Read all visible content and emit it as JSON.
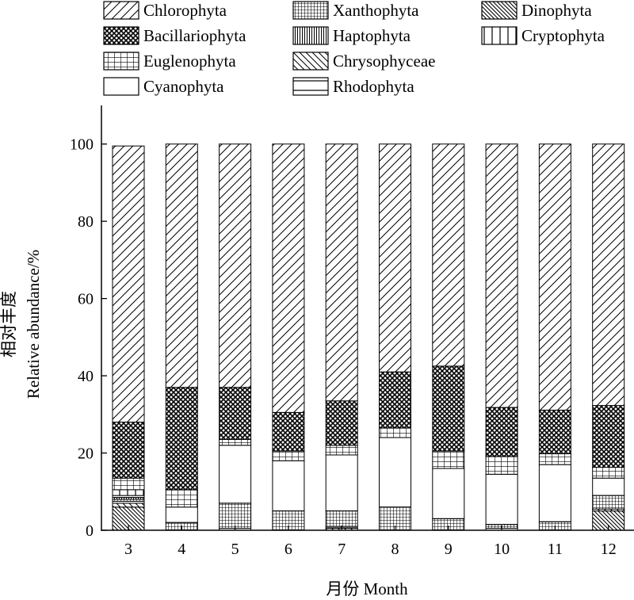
{
  "chart_data": {
    "type": "bar",
    "stacked": true,
    "xlabel": "月份 Month",
    "ylabel_cn": "相对丰度",
    "ylabel": "Relative abundance/%",
    "ylim": [
      0,
      110
    ],
    "yticks": [
      0,
      20,
      40,
      60,
      80,
      100
    ],
    "categories": [
      "3",
      "4",
      "5",
      "6",
      "7",
      "8",
      "9",
      "10",
      "11",
      "12"
    ],
    "legend": {
      "placement": "top",
      "entries": [
        {
          "name": "Chlorophyta",
          "pattern": "diag-fwd"
        },
        {
          "name": "Bacillariophyta",
          "pattern": "crosshatch-dense"
        },
        {
          "name": "Euglenophyta",
          "pattern": "grid"
        },
        {
          "name": "Cyanophyta",
          "pattern": "blank"
        },
        {
          "name": "Xanthophyta",
          "pattern": "grid-dense"
        },
        {
          "name": "Haptophyta",
          "pattern": "vertical-dense"
        },
        {
          "name": "Chrysophyceae",
          "pattern": "diag-back"
        },
        {
          "name": "Rhodophyta",
          "pattern": "horizontal"
        },
        {
          "name": "Dinophyta",
          "pattern": "diag-back-dense"
        },
        {
          "name": "Cryptophyta",
          "pattern": "vertical"
        }
      ]
    },
    "stack_order": [
      "Dinophyta",
      "Chrysophyceae",
      "Rhodophyta",
      "Xanthophyta",
      "Haptophyta",
      "Cyanophyta",
      "Cryptophyta",
      "Euglenophyta",
      "Bacillariophyta",
      "Chlorophyta"
    ],
    "series": [
      {
        "name": "Dinophyta",
        "values": [
          6.0,
          0,
          0,
          0,
          0,
          0,
          0,
          0,
          0,
          5.0
        ]
      },
      {
        "name": "Chrysophyceae",
        "values": [
          1.0,
          0,
          0,
          0,
          0.5,
          0,
          0,
          0,
          0,
          0.5
        ]
      },
      {
        "name": "Rhodophyta",
        "values": [
          0.5,
          0,
          0.5,
          0,
          0.5,
          0,
          0,
          0.5,
          0,
          0
        ]
      },
      {
        "name": "Xanthophyta",
        "values": [
          0.5,
          2.0,
          6.5,
          5.0,
          4.0,
          6.0,
          3.0,
          1.0,
          2.2,
          3.5
        ]
      },
      {
        "name": "Haptophyta",
        "values": [
          0.5,
          0,
          0,
          0,
          0,
          0,
          0,
          0,
          0,
          0
        ]
      },
      {
        "name": "Cyanophyta",
        "values": [
          0.5,
          4.0,
          15.0,
          13.0,
          14.5,
          18.0,
          13.0,
          13.0,
          14.8,
          4.5
        ]
      },
      {
        "name": "Cryptophyta",
        "values": [
          1.5,
          0,
          0,
          0,
          0,
          0,
          0,
          0,
          0,
          0
        ]
      },
      {
        "name": "Euglenophyta",
        "values": [
          3.0,
          4.5,
          1.5,
          2.5,
          2.5,
          2.5,
          4.5,
          4.6,
          2.8,
          2.8
        ]
      },
      {
        "name": "Bacillariophyta",
        "values": [
          14.5,
          26.5,
          13.5,
          10.0,
          11.5,
          14.5,
          22.0,
          12.7,
          11.3,
          16.0
        ]
      },
      {
        "name": "Chlorophyta",
        "values": [
          71.5,
          63.0,
          63.0,
          69.5,
          66.5,
          59.0,
          57.5,
          68.2,
          68.9,
          67.7
        ]
      }
    ]
  }
}
